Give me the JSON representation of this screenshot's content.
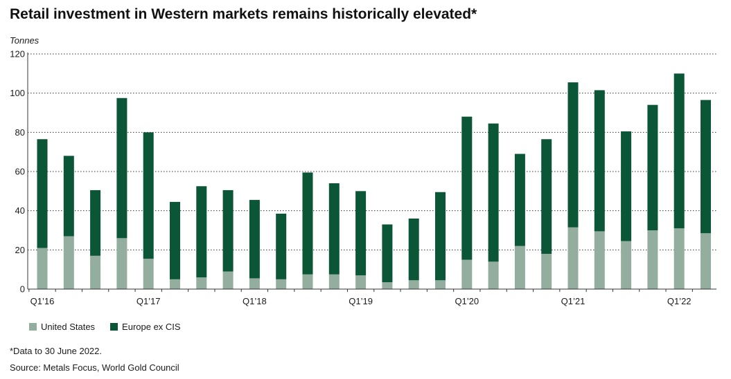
{
  "title": "Retail investment in Western markets remains historically elevated*",
  "unit_label": "Tonnes",
  "footnote": "*Data to 30 June 2022.",
  "source": "Source: Metals Focus, World Gold Council",
  "colors": {
    "united_states": "#93ae9f",
    "europe_ex_cis": "#0b5637",
    "grid": "#333333",
    "axis": "#333333"
  },
  "legend": [
    {
      "name": "United States",
      "color": "#93ae9f"
    },
    {
      "name": "Europe ex CIS",
      "color": "#0b5637"
    }
  ],
  "chart_data": {
    "type": "bar",
    "stacked": true,
    "categories": [
      "Q1'16",
      "Q2'16",
      "Q3'16",
      "Q4'16",
      "Q1'17",
      "Q2'17",
      "Q3'17",
      "Q4'17",
      "Q1'18",
      "Q2'18",
      "Q3'18",
      "Q4'18",
      "Q1'19",
      "Q2'19",
      "Q3'19",
      "Q4'19",
      "Q1'20",
      "Q2'20",
      "Q3'20",
      "Q4'20",
      "Q1'21",
      "Q2'21",
      "Q3'21",
      "Q4'21",
      "Q1'22",
      "Q2'22"
    ],
    "x_tick_labels": [
      {
        "index": 0,
        "label": "Q1’16"
      },
      {
        "index": 4,
        "label": "Q1’17"
      },
      {
        "index": 8,
        "label": "Q1’18"
      },
      {
        "index": 12,
        "label": "Q1’19"
      },
      {
        "index": 16,
        "label": "Q1’20"
      },
      {
        "index": 20,
        "label": "Q1’21"
      },
      {
        "index": 24,
        "label": "Q1’22"
      }
    ],
    "series": [
      {
        "name": "United States",
        "values": [
          21,
          27,
          17,
          26,
          15.5,
          5,
          6,
          9,
          5.5,
          5,
          7.5,
          7.5,
          7,
          3.5,
          4.5,
          4.5,
          15,
          14,
          22,
          18,
          31.5,
          29.5,
          24.5,
          30,
          31,
          28.5
        ]
      },
      {
        "name": "Europe ex CIS",
        "values": [
          55.5,
          41,
          33.5,
          71.5,
          64.5,
          39.5,
          46.5,
          41.5,
          40,
          33.5,
          52,
          46.5,
          43,
          29.5,
          31.5,
          45,
          73,
          70.5,
          47,
          58.5,
          74,
          72,
          56,
          64,
          79,
          68
        ]
      }
    ],
    "ylabel": "Tonnes",
    "xlabel": "",
    "ylim": [
      0,
      120
    ],
    "yticks": [
      0,
      20,
      40,
      60,
      80,
      100,
      120
    ],
    "grid": "dotted horizontal",
    "legend_position": "bottom-left"
  }
}
